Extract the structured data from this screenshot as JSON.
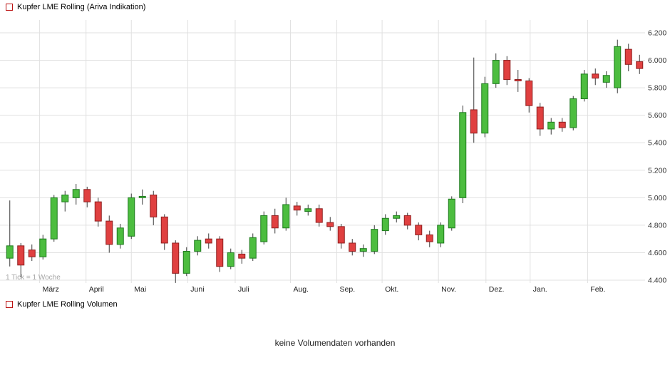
{
  "header": {
    "title": "Kupfer LME Rolling (Ariva Indikation)"
  },
  "volume_section": {
    "title": "Kupfer LME Rolling Volumen",
    "empty_message": "keine Volumendaten vorhanden"
  },
  "chart_data": {
    "type": "candlestick",
    "instrument": "Kupfer LME Rolling",
    "tick_note": "1 Tick = 1 Woche",
    "y_axis": {
      "min": 4.4,
      "max": 6.2,
      "step": 0.2,
      "side": "right"
    },
    "y_ticks": [
      {
        "value": 6.2,
        "label": "6.200"
      },
      {
        "value": 6.0,
        "label": "6.000"
      },
      {
        "value": 5.8,
        "label": "5.800"
      },
      {
        "value": 5.6,
        "label": "5.600"
      },
      {
        "value": 5.4,
        "label": "5.400"
      },
      {
        "value": 5.2,
        "label": "5.200"
      },
      {
        "value": 5.0,
        "label": "5.000"
      },
      {
        "value": 4.8,
        "label": "4.800"
      },
      {
        "value": 4.6,
        "label": "4.600"
      },
      {
        "value": 4.4,
        "label": "4.400"
      }
    ],
    "x_ticks": [
      {
        "label": "März",
        "boundary_index": 3.2
      },
      {
        "label": "April",
        "boundary_index": 7.4
      },
      {
        "label": "Mai",
        "boundary_index": 11.5
      },
      {
        "label": "Juni",
        "boundary_index": 16.6
      },
      {
        "label": "Juli",
        "boundary_index": 20.9
      },
      {
        "label": "Aug.",
        "boundary_index": 25.9
      },
      {
        "label": "Sep.",
        "boundary_index": 30.1
      },
      {
        "label": "Okt.",
        "boundary_index": 34.2
      },
      {
        "label": "Nov.",
        "boundary_index": 39.3
      },
      {
        "label": "Dez.",
        "boundary_index": 43.6
      },
      {
        "label": "Jan.",
        "boundary_index": 47.6
      },
      {
        "label": "Feb.",
        "boundary_index": 52.8
      }
    ],
    "candle_format": [
      "open",
      "high",
      "low",
      "close"
    ],
    "candles": [
      [
        4.56,
        4.98,
        4.5,
        4.65
      ],
      [
        4.65,
        4.67,
        4.42,
        4.51
      ],
      [
        4.62,
        4.66,
        4.54,
        4.57
      ],
      [
        4.57,
        4.73,
        4.55,
        4.7
      ],
      [
        4.7,
        5.02,
        4.68,
        5.0
      ],
      [
        4.97,
        5.05,
        4.9,
        5.02
      ],
      [
        5.0,
        5.1,
        4.95,
        5.06
      ],
      [
        5.06,
        5.08,
        4.93,
        4.97
      ],
      [
        4.97,
        5.0,
        4.79,
        4.83
      ],
      [
        4.83,
        4.87,
        4.6,
        4.66
      ],
      [
        4.66,
        4.81,
        4.63,
        4.78
      ],
      [
        4.72,
        5.03,
        4.7,
        5.0
      ],
      [
        5.0,
        5.06,
        4.95,
        5.01
      ],
      [
        5.02,
        5.05,
        4.8,
        4.86
      ],
      [
        4.86,
        4.88,
        4.62,
        4.67
      ],
      [
        4.67,
        4.69,
        4.38,
        4.45
      ],
      [
        4.45,
        4.64,
        4.43,
        4.61
      ],
      [
        4.61,
        4.72,
        4.58,
        4.69
      ],
      [
        4.7,
        4.74,
        4.63,
        4.67
      ],
      [
        4.7,
        4.72,
        4.46,
        4.5
      ],
      [
        4.5,
        4.63,
        4.48,
        4.6
      ],
      [
        4.59,
        4.62,
        4.52,
        4.56
      ],
      [
        4.56,
        4.74,
        4.54,
        4.71
      ],
      [
        4.68,
        4.9,
        4.66,
        4.87
      ],
      [
        4.87,
        4.92,
        4.74,
        4.78
      ],
      [
        4.78,
        5.0,
        4.76,
        4.95
      ],
      [
        4.94,
        4.97,
        4.87,
        4.91
      ],
      [
        4.9,
        4.95,
        4.87,
        4.92
      ],
      [
        4.92,
        4.95,
        4.79,
        4.82
      ],
      [
        4.82,
        4.86,
        4.76,
        4.79
      ],
      [
        4.79,
        4.81,
        4.63,
        4.67
      ],
      [
        4.67,
        4.7,
        4.58,
        4.61
      ],
      [
        4.61,
        4.66,
        4.57,
        4.63
      ],
      [
        4.61,
        4.8,
        4.59,
        4.77
      ],
      [
        4.76,
        4.88,
        4.73,
        4.85
      ],
      [
        4.85,
        4.9,
        4.82,
        4.87
      ],
      [
        4.87,
        4.89,
        4.77,
        4.8
      ],
      [
        4.8,
        4.82,
        4.69,
        4.73
      ],
      [
        4.73,
        4.76,
        4.64,
        4.68
      ],
      [
        4.67,
        4.82,
        4.64,
        4.8
      ],
      [
        4.78,
        5.01,
        4.76,
        4.99
      ],
      [
        5.0,
        5.67,
        4.96,
        5.62
      ],
      [
        5.64,
        6.02,
        5.4,
        5.47
      ],
      [
        5.47,
        5.88,
        5.44,
        5.83
      ],
      [
        5.83,
        6.05,
        5.8,
        6.0
      ],
      [
        6.0,
        6.03,
        5.82,
        5.86
      ],
      [
        5.86,
        5.93,
        5.77,
        5.85
      ],
      [
        5.85,
        5.87,
        5.62,
        5.67
      ],
      [
        5.66,
        5.69,
        5.45,
        5.5
      ],
      [
        5.5,
        5.58,
        5.46,
        5.55
      ],
      [
        5.55,
        5.58,
        5.48,
        5.51
      ],
      [
        5.51,
        5.74,
        5.49,
        5.72
      ],
      [
        5.72,
        5.93,
        5.7,
        5.9
      ],
      [
        5.9,
        5.94,
        5.82,
        5.87
      ],
      [
        5.84,
        5.92,
        5.8,
        5.89
      ],
      [
        5.8,
        6.15,
        5.76,
        6.1
      ],
      [
        6.08,
        6.12,
        5.92,
        5.97
      ],
      [
        5.99,
        6.04,
        5.9,
        5.94
      ]
    ],
    "colors": {
      "up_fill": "#4cbd3f",
      "up_stroke": "#1f7a1f",
      "down_fill": "#e04040",
      "down_stroke": "#8e1f1f",
      "wick": "#3a3a3a",
      "grid": "#e0e0e0",
      "axis_text": "#333333",
      "note_text": "#a6a6a6",
      "legend_box_border": "#bb1111"
    }
  }
}
